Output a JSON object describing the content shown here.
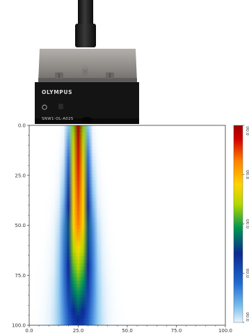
{
  "probe": {
    "brand": "OLYMPUS",
    "model": "SNW1-OL-A025"
  },
  "colors": {
    "cable": "#1a1a1a",
    "housing_top": "#8a8784",
    "housing_body": "#151515",
    "background": "#ffffff",
    "axis": "#333333"
  },
  "chart_data": {
    "type": "heatmap",
    "title": "",
    "xlabel": "",
    "ylabel": "",
    "xlim": [
      0,
      100
    ],
    "ylim": [
      0,
      100
    ],
    "y_inverted": true,
    "x_ticks": [
      "0.0",
      "25.0",
      "50.0",
      "75.0",
      "100.0"
    ],
    "y_ticks": [
      "0.0",
      "25.0",
      "50.0",
      "75.0",
      "100.0"
    ],
    "x_tick_values": [
      0,
      25,
      50,
      75,
      100
    ],
    "y_tick_values": [
      0,
      25,
      50,
      75,
      100
    ],
    "beam_center_x": 25,
    "beam_width_near": 10,
    "beam_width_far": 26,
    "colormap": [
      "#ffffff",
      "#cfe6f8",
      "#6ab4e8",
      "#1e64c8",
      "#0a1e8c",
      "#00a050",
      "#c8dc00",
      "#ffd700",
      "#ff7a00",
      "#d00000",
      "#a00000"
    ],
    "colorbar": {
      "labels": [
        "00.0",
        "00.0",
        "00.0",
        "00.0",
        "00.0"
      ],
      "label_values": [
        0,
        0.25,
        0.5,
        0.75,
        1.0
      ]
    }
  }
}
